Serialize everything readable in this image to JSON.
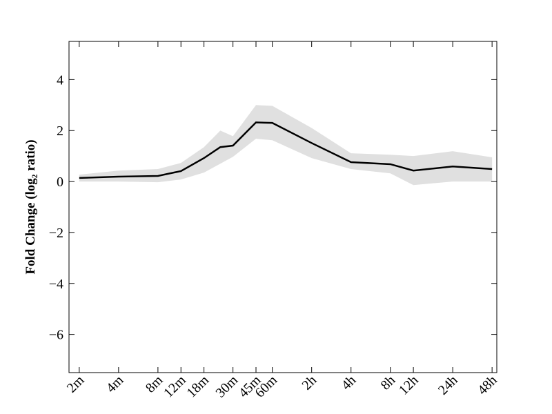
{
  "chart_data": {
    "type": "line",
    "ylabel": "Fold Change (log₂ ratio)",
    "x": [
      2,
      4,
      8,
      12,
      18,
      24,
      30,
      45,
      60,
      120,
      240,
      480,
      720,
      1440,
      2880
    ],
    "xscale": "log",
    "xlim": [
      1.67,
      3130
    ],
    "xticks": [
      {
        "value": 2,
        "label": "2m"
      },
      {
        "value": 4,
        "label": "4m"
      },
      {
        "value": 8,
        "label": "8m"
      },
      {
        "value": 12,
        "label": "12m"
      },
      {
        "value": 18,
        "label": "18m"
      },
      {
        "value": 30,
        "label": "30m"
      },
      {
        "value": 45,
        "label": "45m"
      },
      {
        "value": 60,
        "label": "60m"
      },
      {
        "value": 120,
        "label": "2h"
      },
      {
        "value": 240,
        "label": "4h"
      },
      {
        "value": 480,
        "label": "8h"
      },
      {
        "value": 720,
        "label": "12h"
      },
      {
        "value": 1440,
        "label": "24h"
      },
      {
        "value": 2880,
        "label": "48h"
      }
    ],
    "ylim": [
      -7.5,
      5.5
    ],
    "yticks": [
      {
        "value": -6,
        "label": "−6"
      },
      {
        "value": -4,
        "label": "−4"
      },
      {
        "value": -2,
        "label": "−2"
      },
      0,
      2,
      4
    ],
    "series": [
      {
        "color": "#000000",
        "values": [
          0.14,
          0.19,
          0.22,
          0.41,
          0.92,
          1.35,
          1.41,
          2.32,
          2.3,
          1.51,
          0.76,
          0.68,
          0.43,
          0.59,
          0.49
        ]
      }
    ],
    "band": {
      "color": "#e0e0e0",
      "lower": [
        0.0,
        0.0,
        -0.03,
        0.08,
        0.35,
        0.7,
        0.97,
        1.68,
        1.62,
        0.92,
        0.49,
        0.32,
        -0.14,
        0.0,
        0.0
      ],
      "upper": [
        0.27,
        0.43,
        0.49,
        0.73,
        1.35,
        2.0,
        1.78,
        3.0,
        2.97,
        2.1,
        1.11,
        1.05,
        1.0,
        1.19,
        0.95
      ]
    }
  }
}
